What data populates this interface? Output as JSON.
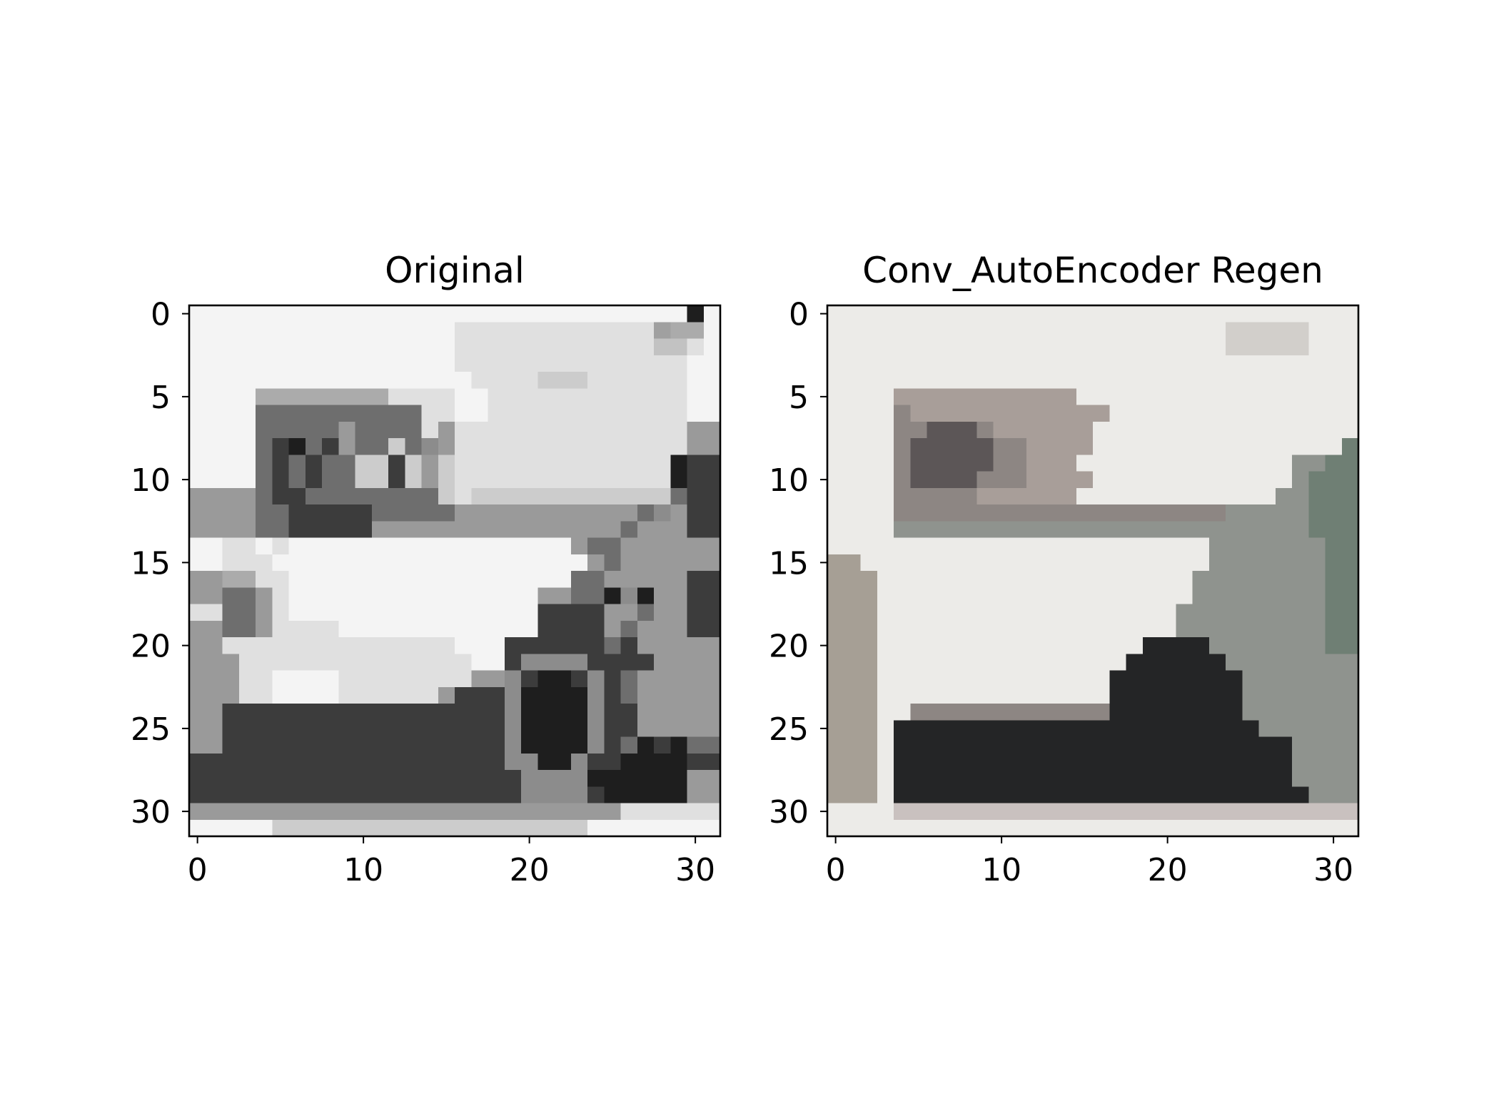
{
  "chart_data": [
    {
      "type": "heatmap",
      "title": "Original",
      "colormap": "grayscale",
      "image_size": [
        32,
        32
      ],
      "xlim": [
        -0.5,
        31.5
      ],
      "ylim": [
        31.5,
        -0.5
      ],
      "xticks": [
        0,
        10,
        20,
        30
      ],
      "yticks": [
        0,
        5,
        10,
        15,
        20,
        25,
        30
      ],
      "xlabel": "",
      "ylabel": "",
      "rows": [
        "ttttttttttttttttttttttttttttttkt",
        "ttttttttttttttttrrrrrrrrrrrrniit",
        "ttttttttttttttttrrrrrrrrrrrrllrt",
        "ttttttttttttttttrrrrrrrrrrrrrrtt",
        "tttttttttttttttttrrrrmmmrrrrrrtt",
        "ttttiiiiiiiirrrrttrrrrrrrrrrrrtt",
        "ttttffffffffffrrttrrrrrrrrrrrrtt",
        "ttttfffffgffffrgrrrrrrrrrrrrrrgg",
        "ttttfbkfbgffmfhgrrrrrrrrrrrrrrgg",
        "ttttfbfbffmmbmgmrrrrrrrrrrrrrkbb",
        "ttttfbfbffmmbmgmrrrrrrrrrrrrrkbb",
        "ggggfbbffffffffmrmmmmmmmmmmmmfbb",
        "ggggffbbbbbfffffgggggggggggfhgbb",
        "ggggffbbbbbgggggggggggggggfgggbb",
        "ttrrtrtttttttttttttttttgffgggggg",
        "ttrrrtttttttttttttttttttgfgggggg",
        "ggiirrtttttttttttttttttffgggggbb",
        "ggffgrtttttttttttttttggffkhkggbb",
        "rrffgrtttttttttttttttbbbbggfggbb",
        "ggffgrrrrttttttttttttbbbbgfgggbb",
        "ggrrrrrrrrrrrrrrtttbbbbbbfbggggg",
        "gggrrrrrrrrrrrrrrttbhhhhbbbbgggg",
        "gggrrttttrrrrrrrrgghbkkbhbfggggg",
        "gggrrttttrrrrrrgbbbhkkkkhbfggggg",
        "ggbbbbbbbbbbbbbbbbbhkkkkhbbggggg",
        "ggbbbbbbbbbbbbbbbbbhkkkkhbbggggg",
        "ggbbbbbbbbbbbbbbbbbhkkkkhbfkbkff",
        "bbbbbbbbbbbbbbbbbbbhhkkhbbkkkkbb",
        "bbbbbbbbbbbbbbbbbbbbhhhhkkkkkkgg",
        "bbbbbbbbbbbbbbbbbbbbhhhhbkkkkkgg",
        "ggggggggggggggggggggggggggrrrrrr",
        "tttttmmmmmmmmmmmmmmmmmmmtttttttt"
      ],
      "palette": {
        "t": "#f4f4f4",
        "r": "#e0e0e0",
        "l": "#c2c2c2",
        "i": "#ababab",
        "m": "#cccccc",
        "g": "#9a9a9a",
        "f": "#6e6e6e",
        "h": "#8c8c8c",
        "b": "#3c3c3c",
        "k": "#1e1e1e",
        "n": "#a0a0a0"
      }
    },
    {
      "type": "heatmap",
      "title": "Conv_AutoEncoder Regen",
      "colormap": "rgb",
      "image_size": [
        32,
        32
      ],
      "xlim": [
        -0.5,
        31.5
      ],
      "ylim": [
        31.5,
        -0.5
      ],
      "xticks": [
        0,
        10,
        20,
        30
      ],
      "yticks": [
        0,
        5,
        10,
        15,
        20,
        25,
        30
      ],
      "xlabel": "",
      "ylabel": "",
      "rows": [
        "wwwwwwwwwwwwwwwwwwwwwwwwwwwwwwww",
        "wwwwwwwwwwwwwwwwwwwwwwwwcccccwww",
        "wwwwwwwwwwwwwwwwwwwwwwwwcccccwww",
        "wwwwwwwwwwwwwwwwwwwwwwwwwwwwwwww",
        "wwwwwwwwwwwwwwwwwwwwwwwwwwwwwwww",
        "wwwwpppppppppppwwwwwwwwwwwwwwwww",
        "wwwwsppppppppppppwwwwwwwwwwwwwww",
        "wwwwssdddsppppppwwwwwwwwwwwwwwww",
        "wwwwsdddddssppppwwwwwwwwwwwwwwwa",
        "wwwwsdddddsspppwwwwwwwwwwwwwqqaa",
        "wwwwsddddsssppppwwwwwwwwwwwwqaaa",
        "wwwwsssssppppppwwwwwwwwwwwwqqaaa",
        "wwwwssssssssssssssssssssqqqqqaaa",
        "wwwwqqqqqqqqqqqqqqqqqqqqqqqqqaaa",
        "wwwwwwwwwwwwwwwwwwwwwwwqqqqqqqaa",
        "uuwwwwwwwwwwwwwwwwwwwwwqqqqqqqaa",
        "uuuwwwwwwwwwwwwwwwwwwwqqqqqqqqaa",
        "uuuwwwwwwwwwwwwwwwwwwwqqqqqqqqaa",
        "uuuwwwwwwwwwwwwwwwwwwqqqqqqqqqaa",
        "uuuwwwwwwwwwwwwwwwwwwqqqqqqqqqaa",
        "uuuwwwwwwwwwwwwwwwwzzzzqqqqqqqaa",
        "uuuwwwwwwwwwwwwwwwzzzzzzqqqqqqqq",
        "uuuwwwwwwwwwwwwwwzzzzzzzzqqqqqqq",
        "uuuwwwwwwwwwwwwwwzzzzzzzzqqqqqqq",
        "uuuwwsssssssssssszzzzzzzzqqqqqqq",
        "uuuwzzzzzzzzzzzzzzzzzzzzzzqqqqqq",
        "uuuwzzzzzzzzzzzzzzzzzzzzzzzzqqqq",
        "uuuwzzzzzzzzzzzzzzzzzzzzzzzzqqqq",
        "uuuwzzzzzzzzzzzzzzzzzzzzzzzzqqqq",
        "uuuwzzzzzzzzzzzzzzzzzzzzzzzzzqqq",
        "wwwwvvvvvvvvvvvvvvvvvvvvvvvvvvvv",
        "wwwwwwwwwwwwwwwwwwwwwwwwwwwwwwww"
      ],
      "palette": {
        "w": "#ecebe8",
        "c": "#d2cfcb",
        "p": "#a89e99",
        "s": "#8d8683",
        "d": "#5c5657",
        "q": "#8f938e",
        "a": "#6f7f74",
        "u": "#a69f95",
        "z": "#242526",
        "v": "#c9c1bf"
      }
    }
  ]
}
